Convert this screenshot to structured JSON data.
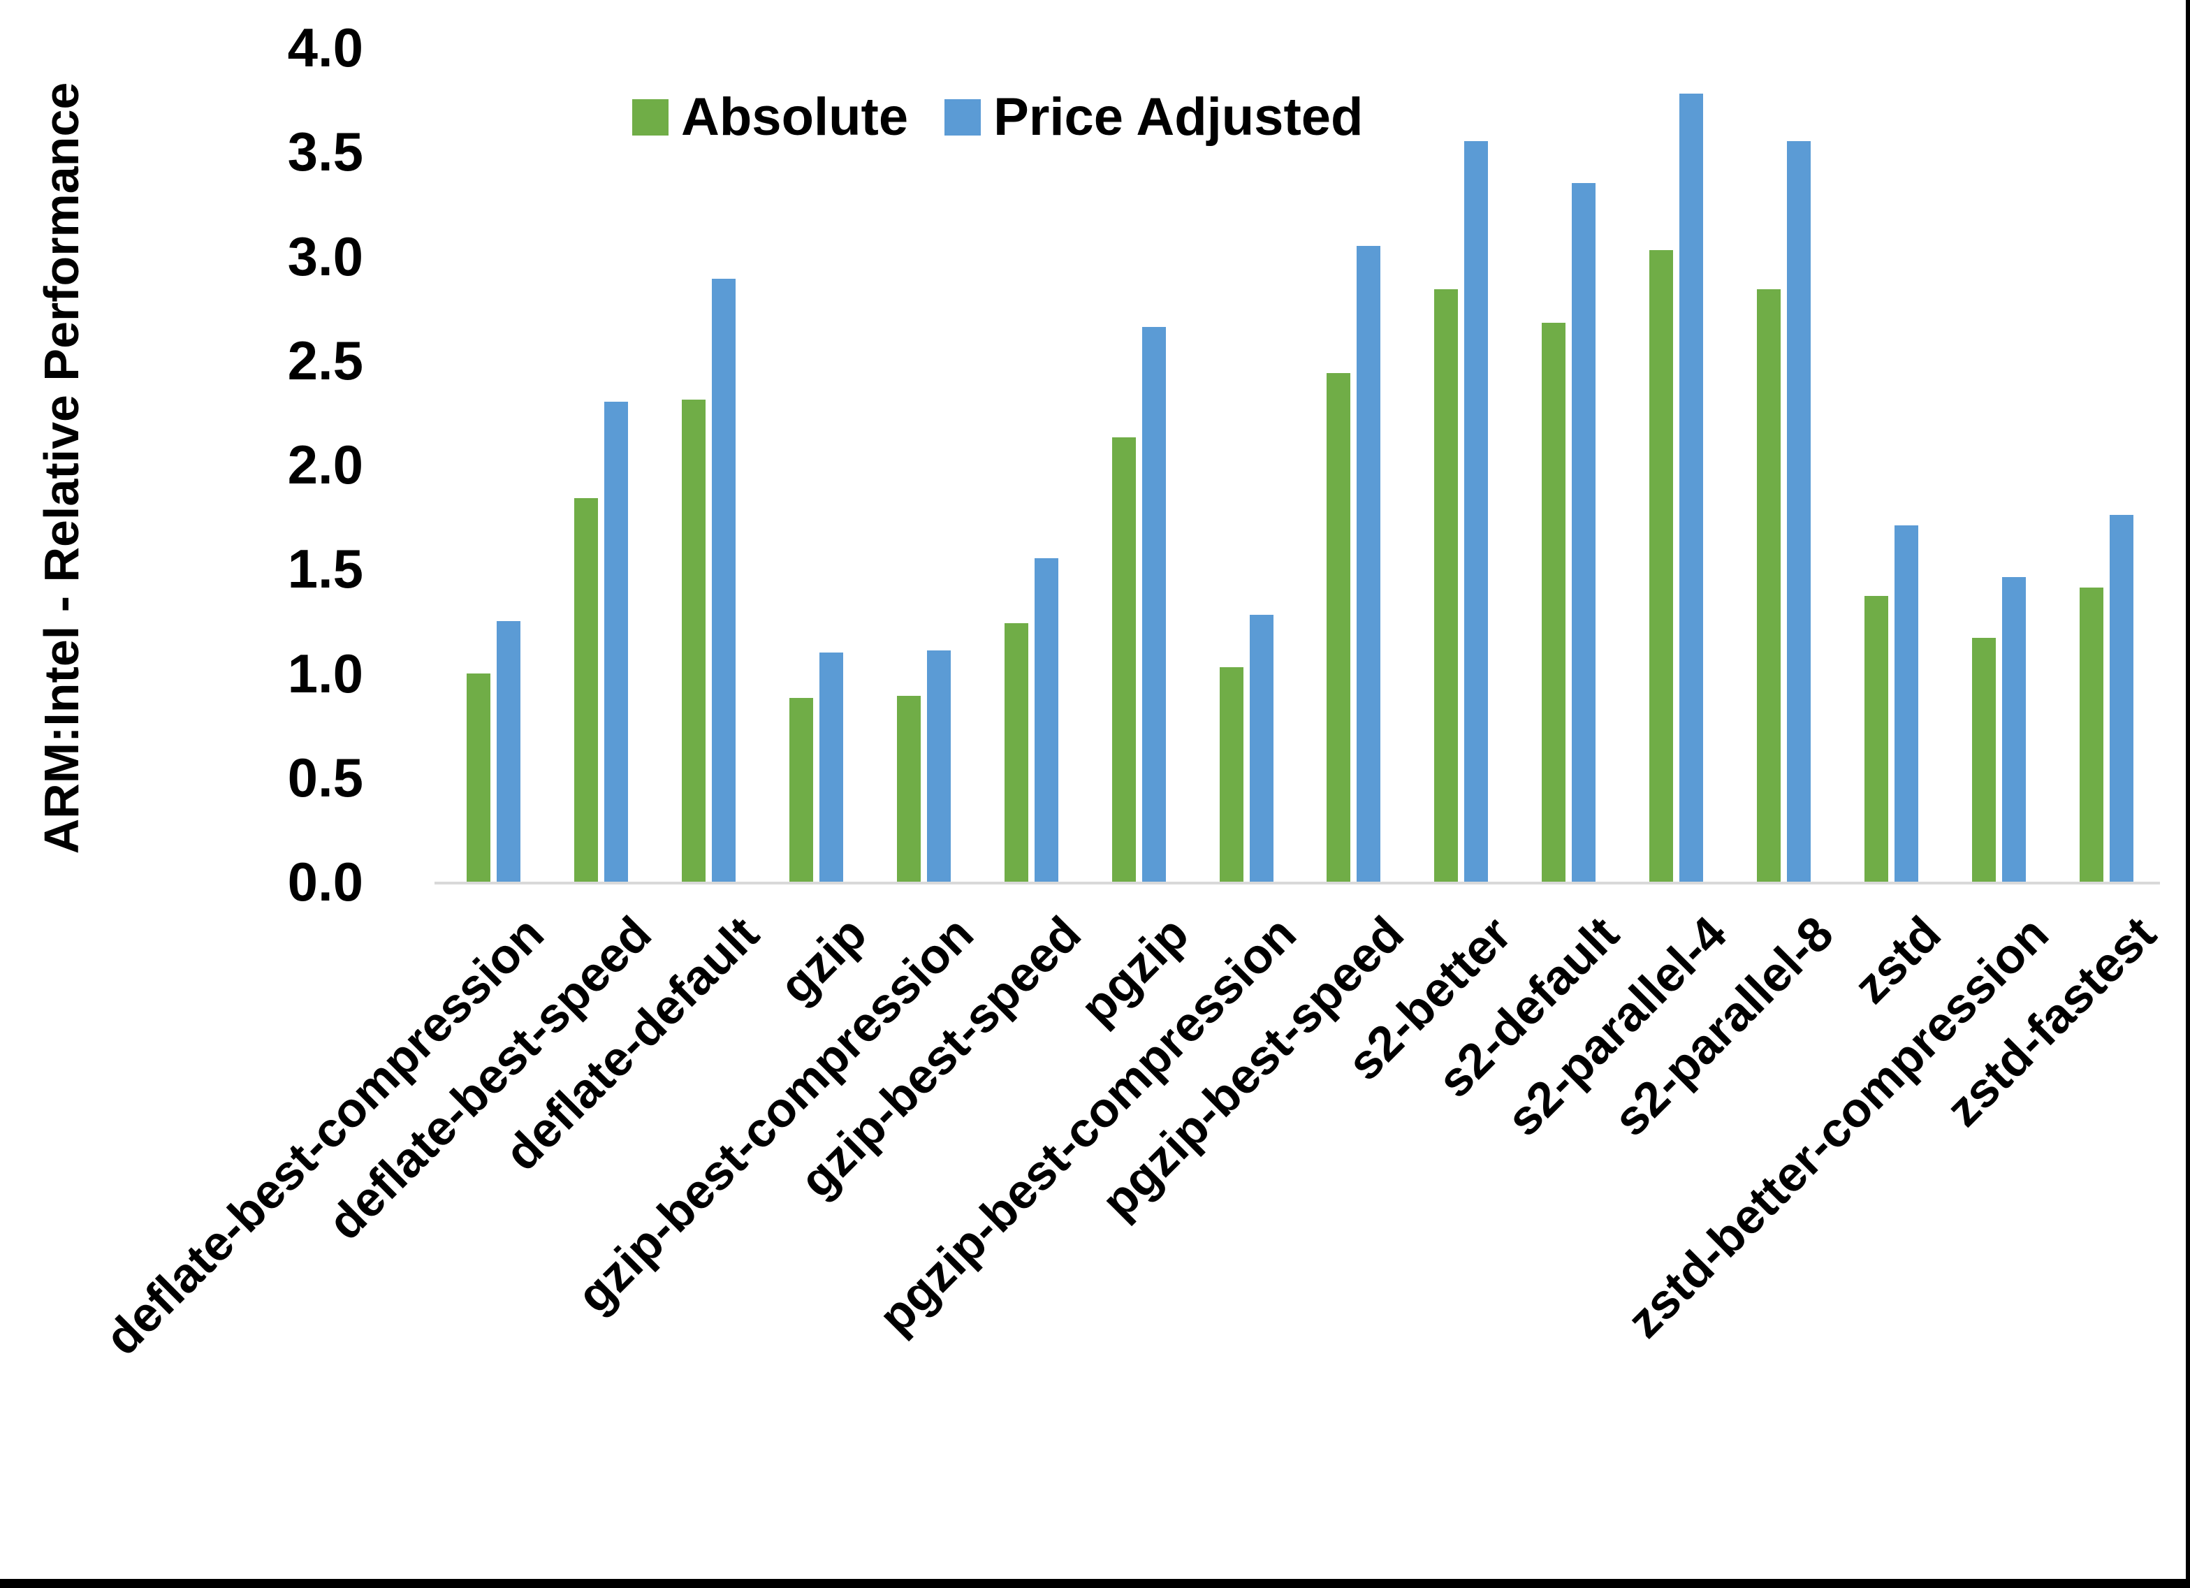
{
  "axis": {
    "y_title": "ARM:Intel - Relative Performance"
  },
  "legend": {
    "items": [
      {
        "label": "Absolute",
        "color": "#70AD47"
      },
      {
        "label": "Price Adjusted",
        "color": "#5B9BD5"
      }
    ]
  },
  "colors": {
    "bar_absolute": "#70AD47",
    "bar_price_adjusted": "#5B9BD5",
    "axis_line": "#D9D9D9",
    "text": "#000000",
    "frame": "#000000"
  },
  "chart_data": {
    "type": "bar",
    "title": "",
    "xlabel": "",
    "ylabel": "ARM:Intel - Relative Performance",
    "ylim": [
      0.0,
      4.0
    ],
    "y_ticks": [
      "0.0",
      "0.5",
      "1.0",
      "1.5",
      "2.0",
      "2.5",
      "3.0",
      "3.5",
      "4.0"
    ],
    "grid": false,
    "legend_position": "top-center",
    "categories": [
      "deflate-best-compression",
      "deflate-best-speed",
      "deflate-default",
      "gzip",
      "gzip-best-compression",
      "gzip-best-speed",
      "pgzip",
      "pgzip-best-compression",
      "pgzip-best-speed",
      "s2-better",
      "s2-default",
      "s2-parallel-4",
      "s2-parallel-8",
      "zstd",
      "zstd-better-compression",
      "zstd-fastest"
    ],
    "series": [
      {
        "name": "Absolute",
        "color": "#70AD47",
        "values": [
          1.0,
          1.84,
          2.31,
          0.88,
          0.89,
          1.24,
          2.13,
          1.03,
          2.44,
          2.84,
          2.68,
          3.03,
          2.84,
          1.37,
          1.17,
          1.41
        ]
      },
      {
        "name": "Price Adjusted",
        "color": "#5B9BD5",
        "values": [
          1.25,
          2.3,
          2.89,
          1.1,
          1.11,
          1.55,
          2.66,
          1.28,
          3.05,
          3.55,
          3.35,
          3.78,
          3.55,
          1.71,
          1.46,
          1.76
        ]
      }
    ]
  }
}
